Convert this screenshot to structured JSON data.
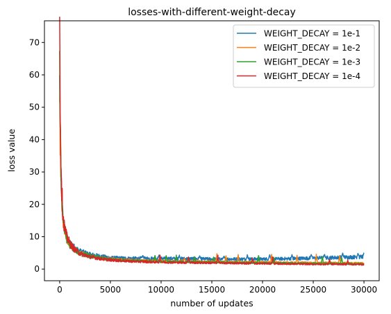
{
  "chart_data": {
    "type": "line",
    "title": "losses-with-different-weight-decay",
    "xlabel": "number of updates",
    "ylabel": "loss value",
    "xlim": [
      -1500,
      31500
    ],
    "ylim": [
      -3.6,
      76.7
    ],
    "xticks": [
      0,
      5000,
      10000,
      15000,
      20000,
      25000,
      30000
    ],
    "xtick_labels": [
      "0",
      "5000",
      "10000",
      "15000",
      "20000",
      "25000",
      "30000"
    ],
    "yticks": [
      0,
      10,
      20,
      30,
      40,
      50,
      60,
      70
    ],
    "ytick_labels": [
      "0",
      "10",
      "20",
      "30",
      "40",
      "50",
      "60",
      "70"
    ],
    "grid": false,
    "legend_position": "upper right",
    "x": [
      0,
      50,
      100,
      150,
      200,
      300,
      400,
      500,
      700,
      1000,
      1500,
      2000,
      3000,
      4000,
      5000,
      7000,
      10000,
      12500,
      15000,
      17500,
      20000,
      22500,
      25000,
      27500,
      30000
    ],
    "series": [
      {
        "name": "WEIGHT_DECAY = 1e-1",
        "color": "#1f77b4",
        "values": [
          57,
          42,
          33,
          27,
          23,
          17,
          14,
          12.5,
          10,
          8,
          6.5,
          5.5,
          4.5,
          4,
          3.5,
          3.3,
          3.3,
          3.2,
          3.1,
          3.1,
          3.1,
          3.2,
          3.4,
          3.6,
          3.8
        ],
        "spikes": [
          [
            8200,
            4.4
          ],
          [
            9800,
            4.6
          ],
          [
            11800,
            4.4
          ],
          [
            13800,
            4.3
          ],
          [
            16200,
            4.2
          ],
          [
            18500,
            4.5
          ],
          [
            20700,
            4.7
          ],
          [
            22900,
            4.6
          ],
          [
            24800,
            4.9
          ],
          [
            26100,
            4.8
          ],
          [
            27900,
            5.1
          ],
          [
            29400,
            5.0
          ],
          [
            30000,
            5.4
          ]
        ]
      },
      {
        "name": "WEIGHT_DECAY = 1e-2",
        "color": "#ff7f0e",
        "values": [
          55,
          40,
          32,
          26,
          22,
          16,
          13.5,
          12,
          9.5,
          7.5,
          6,
          5,
          4,
          3.5,
          3.1,
          2.7,
          2.5,
          2.4,
          2.3,
          2.2,
          2.1,
          2.0,
          1.9,
          1.9,
          1.8
        ],
        "spikes": [
          [
            12300,
            3.6
          ],
          [
            15500,
            5.1
          ],
          [
            16400,
            4.6
          ],
          [
            17600,
            4.5
          ],
          [
            20900,
            4.7
          ],
          [
            23400,
            4.3
          ],
          [
            25300,
            4.6
          ],
          [
            27600,
            4.3
          ]
        ]
      },
      {
        "name": "WEIGHT_DECAY = 1e-3",
        "color": "#2ca02c",
        "values": [
          60,
          43,
          34,
          28,
          23,
          17,
          14,
          12,
          9.5,
          7.5,
          6,
          5,
          4,
          3.4,
          3,
          2.6,
          2.3,
          2.2,
          2.1,
          2.0,
          1.9,
          1.8,
          1.7,
          1.7,
          1.6
        ],
        "spikes": [
          [
            9400,
            4.6
          ],
          [
            10500,
            4.3
          ],
          [
            11500,
            4.5
          ],
          [
            13300,
            4.3
          ],
          [
            15200,
            4.2
          ],
          [
            19600,
            4.8
          ],
          [
            21100,
            4.3
          ],
          [
            25900,
            4.5
          ],
          [
            27800,
            4.2
          ]
        ]
      },
      {
        "name": "WEIGHT_DECAY = 1e-4",
        "color": "#d62728",
        "values": [
          73,
          52,
          40,
          31,
          25,
          18,
          14.5,
          12.5,
          10,
          8,
          6,
          4.8,
          3.8,
          3.2,
          2.8,
          2.4,
          2.1,
          2.0,
          1.9,
          1.8,
          1.7,
          1.6,
          1.5,
          1.5,
          1.4
        ],
        "spikes": [
          [
            9900,
            5.0
          ],
          [
            12700,
            4.0
          ],
          [
            15600,
            4.4
          ],
          [
            19000,
            3.6
          ],
          [
            21000,
            4.5
          ],
          [
            26600,
            3.4
          ],
          [
            28400,
            3.0
          ]
        ]
      }
    ]
  }
}
